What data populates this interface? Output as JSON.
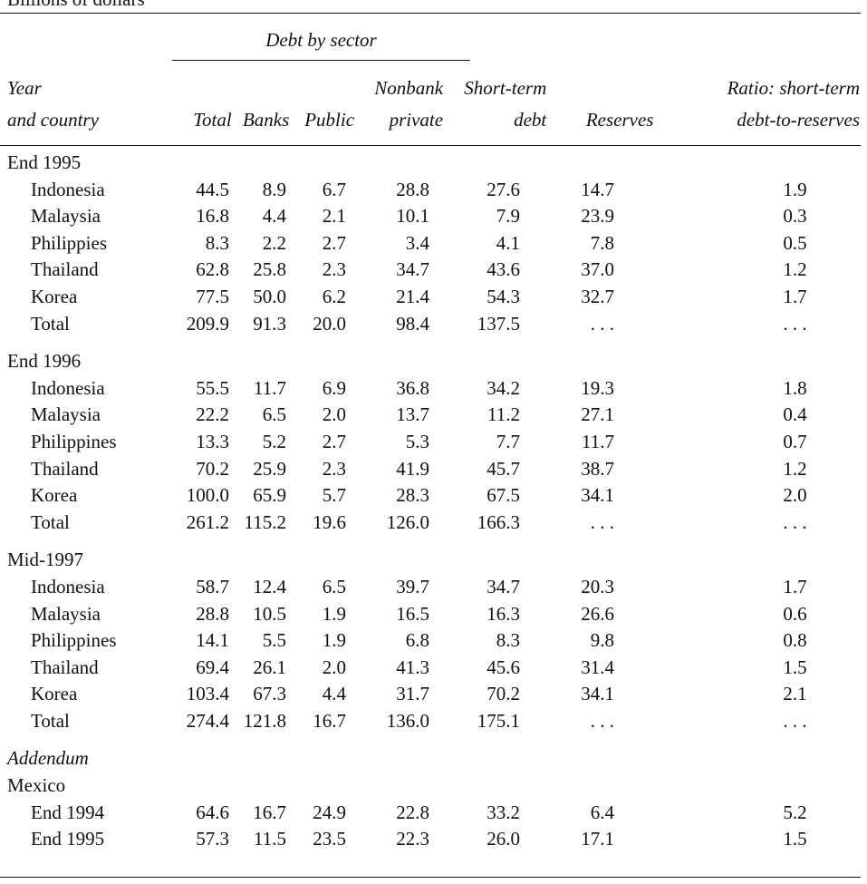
{
  "caption": "Billions of dollars",
  "spanner": "Debt by sector",
  "headers": {
    "row1": [
      "Year",
      "",
      "",
      "",
      "Nonbank",
      "Short-term",
      "",
      "Ratio: short-term"
    ],
    "row2": [
      "and country",
      "Total",
      "Banks",
      "Public",
      "private",
      "debt",
      "Reserves",
      "debt-to-reserves"
    ]
  },
  "groups": [
    {
      "label": "End 1995",
      "rows": [
        [
          "Indonesia",
          "44.5",
          "8.9",
          "6.7",
          "28.8",
          "27.6",
          "14.7",
          "1.9"
        ],
        [
          "Malaysia",
          "16.8",
          "4.4",
          "2.1",
          "10.1",
          "7.9",
          "23.9",
          "0.3"
        ],
        [
          "Philippies",
          "8.3",
          "2.2",
          "2.7",
          "3.4",
          "4.1",
          "7.8",
          "0.5"
        ],
        [
          "Thailand",
          "62.8",
          "25.8",
          "2.3",
          "34.7",
          "43.6",
          "37.0",
          "1.2"
        ],
        [
          "Korea",
          "77.5",
          "50.0",
          "6.2",
          "21.4",
          "54.3",
          "32.7",
          "1.7"
        ],
        [
          "Total",
          "209.9",
          "91.3",
          "20.0",
          "98.4",
          "137.5",
          ". . .",
          ". . ."
        ]
      ]
    },
    {
      "label": "End 1996",
      "rows": [
        [
          "Indonesia",
          "55.5",
          "11.7",
          "6.9",
          "36.8",
          "34.2",
          "19.3",
          "1.8"
        ],
        [
          "Malaysia",
          "22.2",
          "6.5",
          "2.0",
          "13.7",
          "11.2",
          "27.1",
          "0.4"
        ],
        [
          "Philippines",
          "13.3",
          "5.2",
          "2.7",
          "5.3",
          "7.7",
          "11.7",
          "0.7"
        ],
        [
          "Thailand",
          "70.2",
          "25.9",
          "2.3",
          "41.9",
          "45.7",
          "38.7",
          "1.2"
        ],
        [
          "Korea",
          "100.0",
          "65.9",
          "5.7",
          "28.3",
          "67.5",
          "34.1",
          "2.0"
        ],
        [
          "Total",
          "261.2",
          "115.2",
          "19.6",
          "126.0",
          "166.3",
          ". . .",
          ". . ."
        ]
      ]
    },
    {
      "label": "Mid-1997",
      "rows": [
        [
          "Indonesia",
          "58.7",
          "12.4",
          "6.5",
          "39.7",
          "34.7",
          "20.3",
          "1.7"
        ],
        [
          "Malaysia",
          "28.8",
          "10.5",
          "1.9",
          "16.5",
          "16.3",
          "26.6",
          "0.6"
        ],
        [
          "Philippines",
          "14.1",
          "5.5",
          "1.9",
          "6.8",
          "8.3",
          "9.8",
          "0.8"
        ],
        [
          "Thailand",
          "69.4",
          "26.1",
          "2.0",
          "41.3",
          "45.6",
          "31.4",
          "1.5"
        ],
        [
          "Korea",
          "103.4",
          "67.3",
          "4.4",
          "31.7",
          "70.2",
          "34.1",
          "2.1"
        ],
        [
          "Total",
          "274.4",
          "121.8",
          "16.7",
          "136.0",
          "175.1",
          ". . .",
          ". . ."
        ]
      ]
    }
  ],
  "addendum": {
    "label": "Addendum",
    "country": "Mexico",
    "rows": [
      [
        "End 1994",
        "64.6",
        "16.7",
        "24.9",
        "22.8",
        "33.2",
        "6.4",
        "5.2"
      ],
      [
        "End 1995",
        "57.3",
        "11.5",
        "23.5",
        "22.3",
        "26.0",
        "17.1",
        "1.5"
      ]
    ]
  }
}
